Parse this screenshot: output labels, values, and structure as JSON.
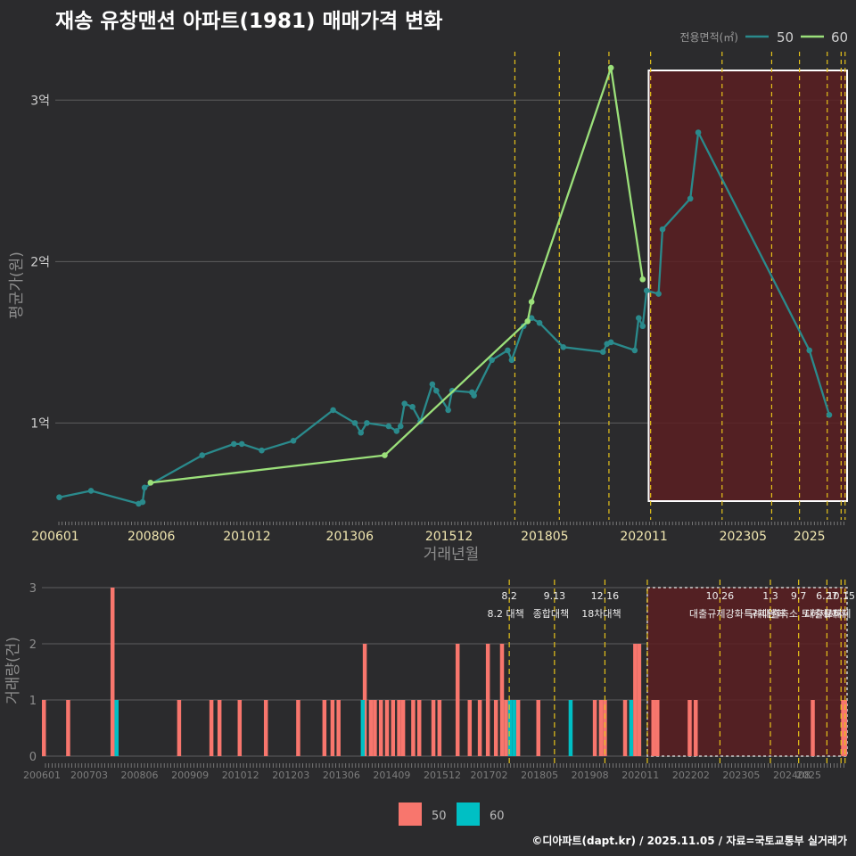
{
  "title": "재송 유창맨션 아파트(1981) 매매가격 변화",
  "footer": "©디아파트(dapt.kr) / 2025.11.05 / 자료=국토교통부 실거래가",
  "colors": {
    "s50_line": "#2a8a8c",
    "s60_line": "#9be07a",
    "bar50": "#f8766d",
    "bar60": "#00bfc4",
    "policy": "#e6c21a",
    "highlight": "#5a1f22"
  },
  "chart_data": [
    {
      "type": "line",
      "title": "재송 유창맨션 아파트(1981) 매매가격 변화",
      "xlabel": "거래년월",
      "ylabel": "평균가(원)",
      "x_range": [
        2006.0,
        2025.95
      ],
      "y_range": [
        0.4,
        3.3
      ],
      "y_ticks": [
        1,
        2,
        3
      ],
      "y_tick_labels": [
        "1억",
        "2억",
        "3억"
      ],
      "x_ticks": [
        2006.0,
        2008.42,
        2010.83,
        2013.42,
        2015.92,
        2018.33,
        2020.83,
        2023.33,
        2025.0
      ],
      "x_tick_labels": [
        "200601",
        "200806",
        "201012",
        "201306",
        "201512",
        "201805",
        "202011",
        "202305",
        "2025"
      ],
      "legend_title": "전용면적(㎡)",
      "legend": [
        "50",
        "60"
      ],
      "policy_lines": [
        2017.58,
        2018.7,
        2019.95,
        2021.0,
        2022.8,
        2024.05,
        2024.75,
        2025.45,
        2025.8,
        2025.9
      ],
      "highlight_range": [
        2020.95,
        2025.95
      ],
      "series": [
        {
          "name": "50",
          "points": [
            [
              2006.1,
              0.54
            ],
            [
              2006.9,
              0.58
            ],
            [
              2008.1,
              0.5
            ],
            [
              2008.2,
              0.51
            ],
            [
              2008.25,
              0.6
            ],
            [
              2009.7,
              0.8
            ],
            [
              2010.5,
              0.87
            ],
            [
              2010.7,
              0.87
            ],
            [
              2011.2,
              0.83
            ],
            [
              2012.0,
              0.89
            ],
            [
              2013.0,
              1.08
            ],
            [
              2013.55,
              1.0
            ],
            [
              2013.7,
              0.94
            ],
            [
              2013.85,
              1.0
            ],
            [
              2014.4,
              0.98
            ],
            [
              2014.6,
              0.95
            ],
            [
              2014.7,
              0.98
            ],
            [
              2014.8,
              1.12
            ],
            [
              2015.0,
              1.1
            ],
            [
              2015.2,
              1.01
            ],
            [
              2015.5,
              1.24
            ],
            [
              2015.6,
              1.2
            ],
            [
              2015.9,
              1.08
            ],
            [
              2016.0,
              1.2
            ],
            [
              2016.5,
              1.19
            ],
            [
              2016.55,
              1.17
            ],
            [
              2017.0,
              1.39
            ],
            [
              2017.4,
              1.45
            ],
            [
              2017.5,
              1.39
            ],
            [
              2017.8,
              1.6
            ],
            [
              2018.0,
              1.65
            ],
            [
              2018.2,
              1.62
            ],
            [
              2018.8,
              1.47
            ],
            [
              2019.8,
              1.44
            ],
            [
              2019.9,
              1.49
            ],
            [
              2020.0,
              1.5
            ],
            [
              2020.6,
              1.45
            ],
            [
              2020.7,
              1.65
            ],
            [
              2020.8,
              1.6
            ],
            [
              2020.9,
              1.82
            ],
            [
              2021.2,
              1.8
            ],
            [
              2021.3,
              2.2
            ],
            [
              2022.0,
              2.39
            ],
            [
              2022.2,
              2.8
            ],
            [
              2025.0,
              1.45
            ],
            [
              2025.5,
              1.05
            ]
          ]
        },
        {
          "name": "60",
          "points": [
            [
              2008.4,
              0.63
            ],
            [
              2014.3,
              0.8
            ],
            [
              2017.9,
              1.63
            ],
            [
              2018.0,
              1.75
            ],
            [
              2020.0,
              3.2
            ],
            [
              2020.8,
              1.89
            ]
          ]
        }
      ]
    },
    {
      "type": "bar",
      "ylabel": "거래량(건)",
      "y_range": [
        0,
        3
      ],
      "y_ticks": [
        0,
        1,
        2,
        3
      ],
      "x_tick_labels": [
        "200601",
        "200703",
        "200806",
        "200909",
        "201012",
        "201203",
        "201306",
        "201409",
        "201512",
        "201702",
        "201805",
        "201908",
        "202011",
        "202202",
        "202305",
        "202408",
        "2025"
      ],
      "x_ticks": [
        2006.0,
        2007.17,
        2008.42,
        2009.67,
        2010.92,
        2012.17,
        2013.42,
        2014.67,
        2015.92,
        2017.08,
        2018.33,
        2019.58,
        2020.83,
        2022.08,
        2023.33,
        2024.58,
        2025.0
      ],
      "legend": [
        "50",
        "60"
      ],
      "annotations": [
        {
          "x": 2017.58,
          "date": "8.2",
          "label": "8.2 대책"
        },
        {
          "x": 2018.7,
          "date": "9.13",
          "label": "종합대책"
        },
        {
          "x": 2019.95,
          "date": "12.16",
          "label": "18차대책"
        },
        {
          "x": 2022.8,
          "date": "10.26",
          "label": "대출규제강화"
        },
        {
          "x": 2024.05,
          "date": "1.3",
          "label": "규제완화"
        },
        {
          "x": 2024.75,
          "date": "9.7",
          "label": "특례대출축소 토허제해제"
        },
        {
          "x": 2025.45,
          "date": "6.27",
          "label": "대출규제"
        },
        {
          "x": 2025.8,
          "date": "10.15",
          "label": "토허제"
        }
      ],
      "bars50": [
        [
          2006.05,
          1
        ],
        [
          2006.65,
          1
        ],
        [
          2007.75,
          3
        ],
        [
          2009.4,
          1
        ],
        [
          2010.2,
          1
        ],
        [
          2010.4,
          1
        ],
        [
          2010.9,
          1
        ],
        [
          2011.55,
          1
        ],
        [
          2012.35,
          1
        ],
        [
          2013.0,
          1
        ],
        [
          2013.2,
          1
        ],
        [
          2013.35,
          1
        ],
        [
          2014.0,
          2
        ],
        [
          2014.15,
          1
        ],
        [
          2014.25,
          1
        ],
        [
          2014.4,
          1
        ],
        [
          2014.55,
          1
        ],
        [
          2014.7,
          1
        ],
        [
          2014.85,
          1
        ],
        [
          2014.95,
          1
        ],
        [
          2015.2,
          1
        ],
        [
          2015.35,
          1
        ],
        [
          2015.7,
          1
        ],
        [
          2015.85,
          1
        ],
        [
          2016.3,
          2
        ],
        [
          2016.6,
          1
        ],
        [
          2016.85,
          1
        ],
        [
          2017.05,
          2
        ],
        [
          2017.25,
          1
        ],
        [
          2017.4,
          2
        ],
        [
          2017.5,
          1
        ],
        [
          2017.8,
          1
        ],
        [
          2018.3,
          1
        ],
        [
          2019.7,
          1
        ],
        [
          2019.85,
          1
        ],
        [
          2019.95,
          1
        ],
        [
          2020.45,
          1
        ],
        [
          2020.7,
          2
        ],
        [
          2020.8,
          2
        ],
        [
          2021.15,
          1
        ],
        [
          2021.25,
          1
        ],
        [
          2022.05,
          1
        ],
        [
          2022.2,
          1
        ],
        [
          2025.1,
          1
        ],
        [
          2025.85,
          1
        ],
        [
          2025.9,
          1
        ]
      ],
      "bars60": [
        [
          2007.85,
          1
        ],
        [
          2013.95,
          1
        ],
        [
          2017.6,
          1
        ],
        [
          2017.7,
          1
        ],
        [
          2019.1,
          1
        ],
        [
          2020.6,
          1
        ]
      ]
    }
  ]
}
